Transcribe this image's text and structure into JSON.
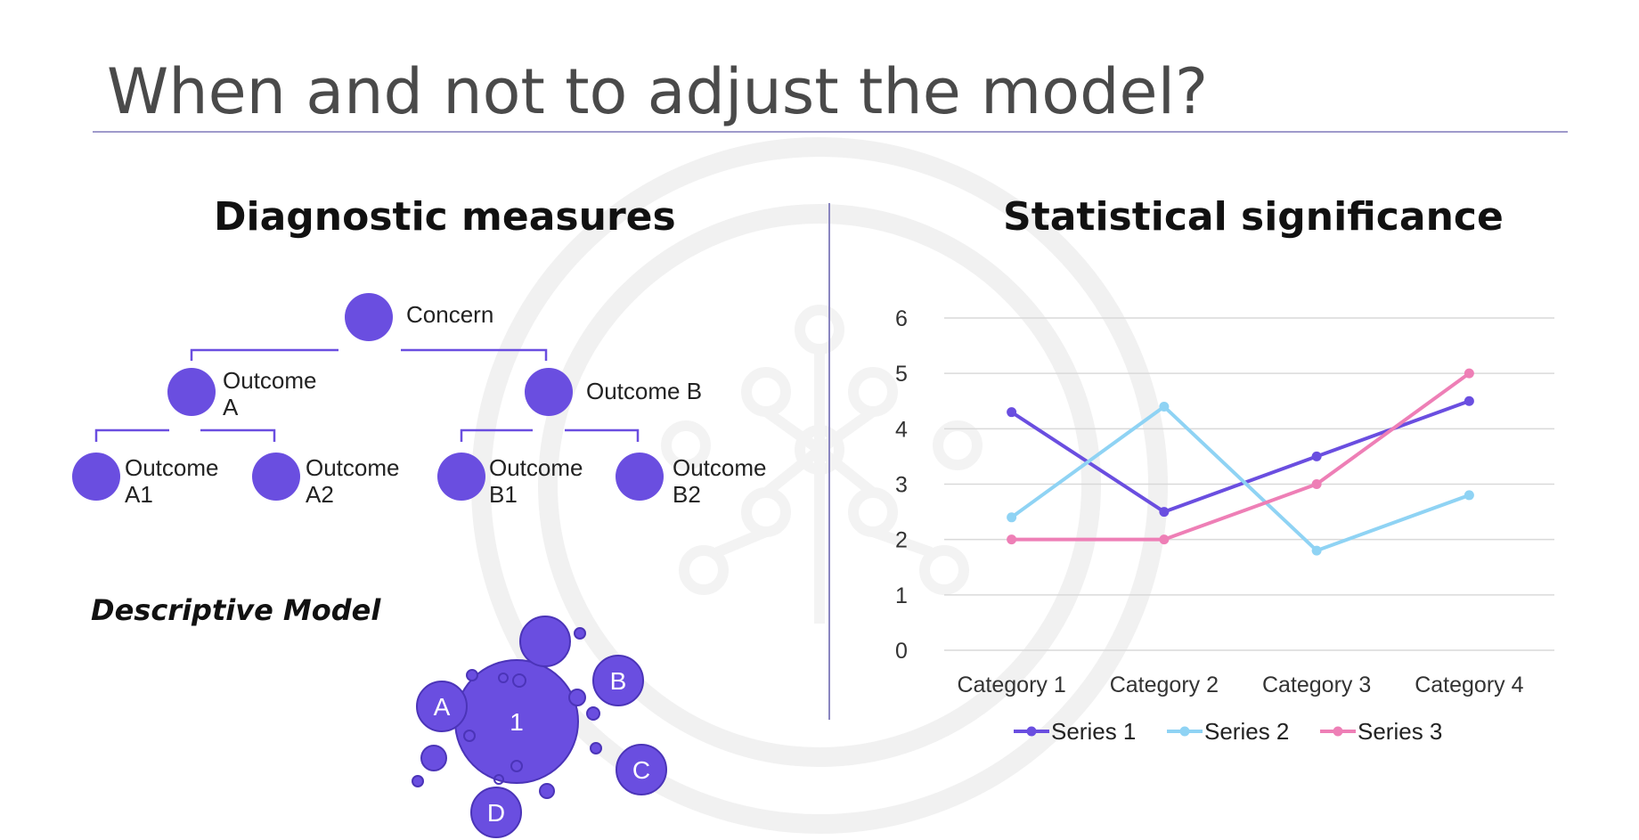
{
  "slide": {
    "title": "When and not to adjust the model?"
  },
  "left": {
    "heading": "Diagnostic measures",
    "tree": {
      "root": "Concern",
      "level1": [
        "Outcome\nA",
        "Outcome B"
      ],
      "level2": [
        "Outcome\nA1",
        "Outcome\nA2",
        "Outcome\nB1",
        "Outcome\nB2"
      ]
    },
    "subheading": "Descriptive Model",
    "blob_labels": {
      "center": "1",
      "a": "A",
      "b": "B",
      "c": "C",
      "d": "D"
    }
  },
  "right": {
    "heading": "Statistical significance"
  },
  "colors": {
    "accent": "#6a4ee0",
    "series1": "#6a4ee0",
    "series2": "#8fd3f4",
    "series3": "#ee7fb6",
    "title_rule": "#9f9acb"
  },
  "chart_data": {
    "type": "line",
    "categories": [
      "Category 1",
      "Category 2",
      "Category 3",
      "Category 4"
    ],
    "series": [
      {
        "name": "Series 1",
        "values": [
          4.3,
          2.5,
          3.5,
          4.5
        ]
      },
      {
        "name": "Series 2",
        "values": [
          2.4,
          4.4,
          1.8,
          2.8
        ]
      },
      {
        "name": "Series 3",
        "values": [
          2.0,
          2.0,
          3.0,
          5.0
        ]
      }
    ],
    "title": "",
    "xlabel": "",
    "ylabel": "",
    "ylim": [
      0,
      6
    ],
    "yticks": [
      0,
      1,
      2,
      3,
      4,
      5,
      6
    ],
    "grid": true,
    "legend": "bottom"
  }
}
